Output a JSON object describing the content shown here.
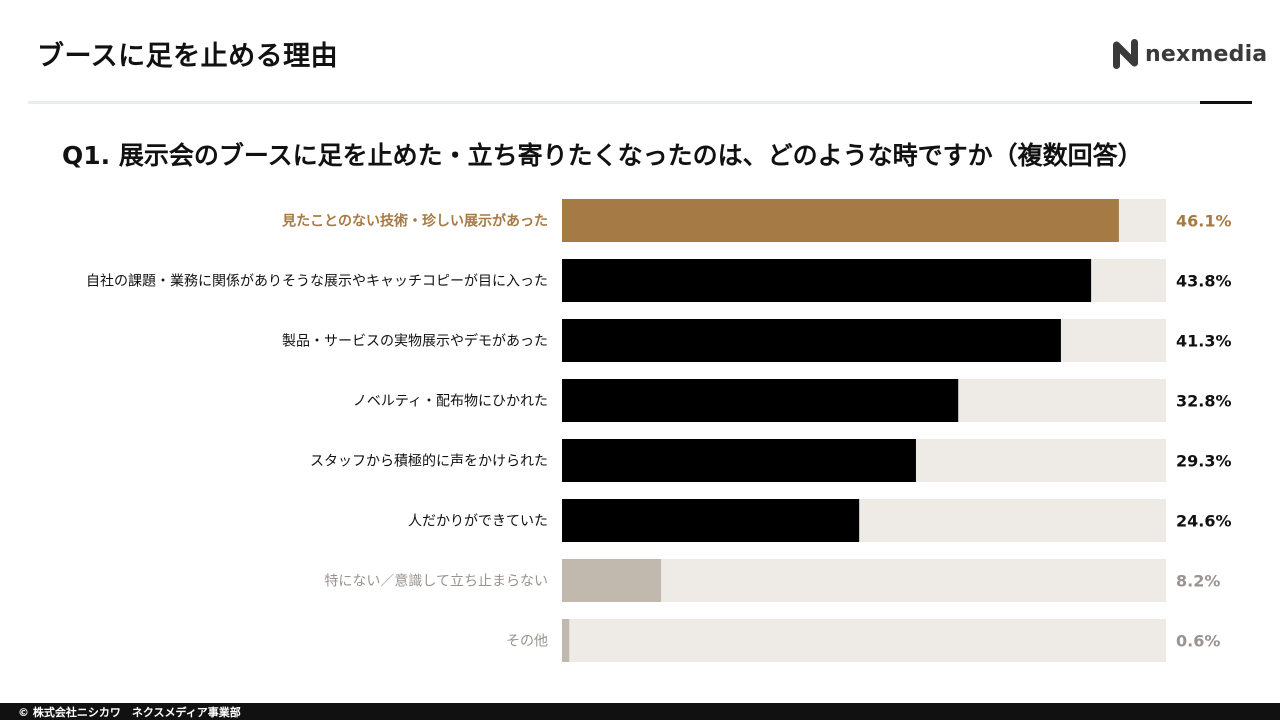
{
  "header": {
    "title": "ブースに足を止める理由",
    "logo_text": "nexmedia",
    "logo_icon": "nexmedia-logo-icon"
  },
  "footer": {
    "copyright": "© 株式会社ニシカワ　ネクスメディア事業部"
  },
  "colors": {
    "highlight": "#a67a44",
    "primary": "#000000",
    "muted": "#c1b9ae",
    "track": "#eeeae6",
    "label_normal": "#111111",
    "label_highlight": "#a67a44",
    "label_muted": "#9a9490"
  },
  "chart_data": {
    "type": "bar",
    "orientation": "horizontal",
    "title": "Q1. 展示会のブースに足を止めた・立ち寄りたくなったのは、どのような時ですか（複数回答）",
    "xlim": [
      0,
      50
    ],
    "unit": "%",
    "categories": [
      "見たことのない技術・珍しい展示があった",
      "自社の課題・業務に関係がありそうな展示やキャッチコピーが目に入った",
      "製品・サービスの実物展示やデモがあった",
      "ノベルティ・配布物にひかれた",
      "スタッフから積極的に声をかけられた",
      "人だかりができていた",
      "特にない／意識して立ち止まらない",
      "その他"
    ],
    "values": [
      46.1,
      43.8,
      41.3,
      32.8,
      29.3,
      24.6,
      8.2,
      0.6
    ],
    "value_labels": [
      "46.1%",
      "43.8%",
      "41.3%",
      "32.8%",
      "29.3%",
      "24.6%",
      "8.2%",
      "0.6%"
    ],
    "styles": [
      "highlight",
      "primary",
      "primary",
      "primary",
      "primary",
      "primary",
      "muted",
      "muted"
    ],
    "grid": false,
    "legend": "none"
  }
}
